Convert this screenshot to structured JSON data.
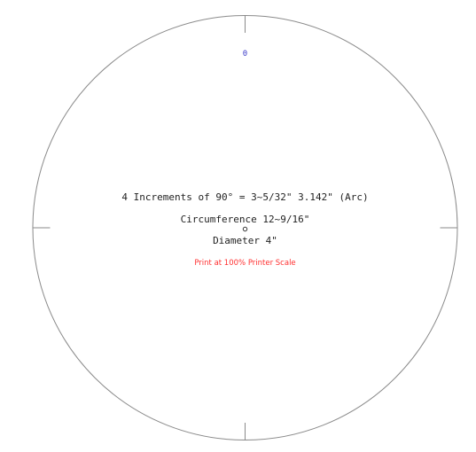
{
  "diagram": {
    "increments_text": "4 Increments of 90° = 3~5/32\" 3.142\" (Arc)",
    "circumference_text": "Circumference 12~9/16\"",
    "diameter_text": "Diameter 4\"",
    "print_note": "Print at 100% Printer Scale",
    "start_marker": "0",
    "colors": {
      "circle": "#8a8a8a",
      "text": "#1f1f1f",
      "marker": "#3a3ac8",
      "note": "#ff3030"
    }
  }
}
